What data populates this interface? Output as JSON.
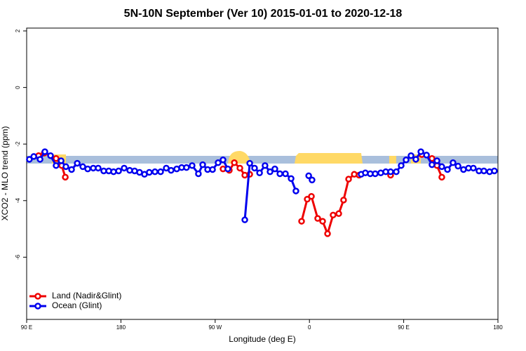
{
  "chart_data": {
    "type": "line",
    "title": "5N-10N September (Ver 10)   2015-01-01 to 2020-12-18",
    "x_label": "Longitude (deg E)",
    "y_label": "XCO2 - MLO trend (ppm)",
    "xlim": [
      90,
      540
    ],
    "xticks": [
      {
        "value": 90,
        "label": "90 E"
      },
      {
        "value": 180,
        "label": "180"
      },
      {
        "value": 270,
        "label": "90 W"
      },
      {
        "value": 360,
        "label": "0"
      },
      {
        "value": 450,
        "label": "90 E"
      },
      {
        "value": 540,
        "label": "180"
      }
    ],
    "ylim": [
      -8.2,
      2.1
    ],
    "yticks": [
      2,
      0,
      -2,
      -4,
      -6
    ],
    "legend": "bottom-left",
    "series": [
      {
        "name": "Land (Nadir&Glint)",
        "color": "#ee0000",
        "x": [
          101.4,
          106.8,
          118.1,
          123.5,
          126.9,
          null,
          277.5,
          283.5,
          288.3,
          293.6,
          298.3,
          303,
          null,
          352.5,
          357.9,
          361.9,
          367.9,
          372.6,
          377.3,
          382.6,
          388,
          392.6,
          397.4,
          402.8,
          407.4,
          null,
          437.5,
          null,
          467.3,
          477,
          481.8,
          486.4
        ],
        "values": [
          -2.41,
          -2.32,
          -2.51,
          -2.76,
          -3.17,
          null,
          -2.88,
          -2.93,
          -2.66,
          -2.85,
          -3.1,
          -3.07,
          null,
          -4.73,
          -3.95,
          -3.85,
          -4.63,
          -4.73,
          -5.17,
          -4.51,
          -4.46,
          -3.98,
          -3.24,
          -3.07,
          -3.1,
          null,
          -3.1,
          null,
          -2.37,
          -2.51,
          -2.76,
          -3.17
        ]
      },
      {
        "name": "Ocean (Glint)",
        "color": "#0000ee",
        "x": [
          92.6,
          96.8,
          102.8,
          107.4,
          112.8,
          118.1,
          122.9,
          127.5,
          132.9,
          138.3,
          143.6,
          148.3,
          153.6,
          158.3,
          163.6,
          168.4,
          173,
          177.8,
          183.1,
          188.4,
          193.1,
          197.8,
          202.5,
          207.1,
          212.5,
          217.9,
          223.3,
          227.9,
          233.3,
          238,
          242.6,
          248,
          254,
          258.1,
          262.8,
          267.5,
          272.8,
          277.5,
          282.1,
          null,
          298.3,
          303,
          307.6,
          312.4,
          317.6,
          322.4,
          327,
          331.8,
          337.1,
          342.5,
          347.1,
          null,
          359.3,
          362.5,
          null,
          409.4,
          413.4,
          418.1,
          422.8,
          428.1,
          432.9,
          437.5,
          442.9,
          447.6,
          452.3,
          457,
          461.6,
          466.4,
          471.8,
          477,
          481.8,
          486.4,
          491.8,
          497.1,
          501.9,
          507.1,
          511.9,
          516.5,
          521.9,
          526.6,
          532,
          536.6
        ],
        "values": [
          -2.54,
          -2.44,
          -2.54,
          -2.27,
          -2.41,
          -2.76,
          -2.59,
          -2.8,
          -2.9,
          -2.68,
          -2.8,
          -2.88,
          -2.85,
          -2.85,
          -2.95,
          -2.95,
          -2.98,
          -2.95,
          -2.85,
          -2.93,
          -2.95,
          -3.0,
          -3.07,
          -3.0,
          -2.98,
          -2.98,
          -2.85,
          -2.93,
          -2.88,
          -2.83,
          -2.83,
          -2.76,
          -3.05,
          -2.73,
          -2.9,
          -2.9,
          -2.66,
          -2.56,
          -2.88,
          null,
          -4.68,
          -2.68,
          -2.85,
          -3.02,
          -2.76,
          -2.98,
          -2.88,
          -3.05,
          -3.05,
          -3.22,
          -3.66,
          null,
          -3.12,
          -3.27,
          null,
          -3.07,
          -3.02,
          -3.05,
          -3.05,
          -3.02,
          -2.98,
          -2.98,
          -2.98,
          -2.76,
          -2.56,
          -2.41,
          -2.54,
          -2.27,
          -2.39,
          -2.73,
          -2.59,
          -2.8,
          -2.9,
          -2.66,
          -2.78,
          -2.9,
          -2.85,
          -2.85,
          -2.95,
          -2.95,
          -2.98,
          -2.95
        ]
      }
    ]
  }
}
